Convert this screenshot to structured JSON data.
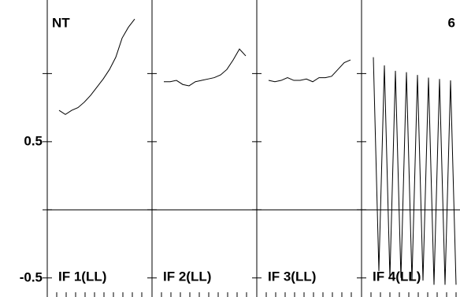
{
  "chart_data": {
    "type": "line",
    "title": "NT",
    "annotation": "6",
    "ylim": [
      -0.64,
      1.54
    ],
    "yticks": [
      -0.5,
      0.5
    ],
    "minor_yticks": [
      0,
      1
    ],
    "zero_line": true,
    "color": "#000000",
    "panels": [
      {
        "name": "IF 1(LL)",
        "values": [
          0.73,
          0.7,
          0.73,
          0.75,
          0.79,
          0.84,
          0.9,
          0.96,
          1.03,
          1.12,
          1.26,
          1.34,
          1.4
        ]
      },
      {
        "name": "IF 2(LL)",
        "values": [
          0.94,
          0.94,
          0.95,
          0.92,
          0.91,
          0.94,
          0.95,
          0.96,
          0.97,
          0.99,
          1.03,
          1.1,
          1.18,
          1.13
        ]
      },
      {
        "name": "IF 3(LL)",
        "values": [
          0.95,
          0.94,
          0.95,
          0.97,
          0.95,
          0.95,
          0.96,
          0.94,
          0.97,
          0.97,
          0.98,
          1.03,
          1.08,
          1.1
        ]
      },
      {
        "name": "IF 4(LL)",
        "values": [
          1.12,
          -0.45,
          1.06,
          -0.5,
          1.02,
          -0.5,
          1.01,
          -0.52,
          0.99,
          -0.52,
          0.97,
          -0.55,
          0.96,
          -0.55,
          0.95,
          -0.55
        ]
      }
    ]
  }
}
